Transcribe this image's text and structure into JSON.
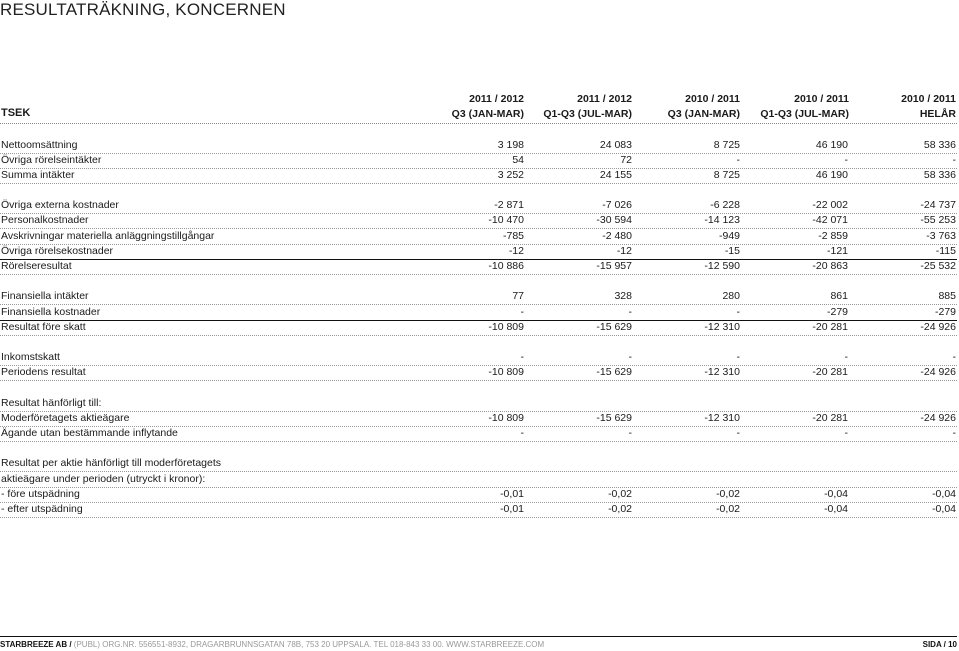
{
  "title": "RESULTATRÄKNING, KONCERNEN",
  "header": {
    "label": "TSEK",
    "columns": [
      {
        "line1": "2011 / 2012",
        "line2": "Q3 (JAN-MAR)"
      },
      {
        "line1": "2011 / 2012",
        "line2": "Q1-Q3 (JUL-MAR)"
      },
      {
        "line1": "2010 / 2011",
        "line2": "Q3 (JAN-MAR)"
      },
      {
        "line1": "2010 / 2011",
        "line2": "Q1-Q3 (JUL-MAR)"
      },
      {
        "line1": "2010 / 2011",
        "line2": "HELÅR"
      }
    ]
  },
  "rows": [
    {
      "label": "Nettoomsättning",
      "values": [
        "3 198",
        "24 083",
        "8 725",
        "46 190",
        "58 336"
      ]
    },
    {
      "label": "Övriga rörelseintäkter",
      "values": [
        "54",
        "72",
        "-",
        "-",
        "-"
      ]
    },
    {
      "label": "Summa intäkter",
      "values": [
        "3 252",
        "24 155",
        "8 725",
        "46 190",
        "58 336"
      ]
    },
    {
      "label": "Övriga externa kostnader",
      "values": [
        "-2 871",
        "-7 026",
        "-6 228",
        "-22 002",
        "-24 737"
      ]
    },
    {
      "label": "Personalkostnader",
      "values": [
        "-10 470",
        "-30 594",
        "-14 123",
        "-42 071",
        "-55 253"
      ]
    },
    {
      "label": "Avskrivningar materiella anläggningstillgångar",
      "values": [
        "-785",
        "-2 480",
        "-949",
        "-2 859",
        "-3 763"
      ]
    },
    {
      "label": "Övriga rörelsekostnader",
      "values": [
        "-12",
        "-12",
        "-15",
        "-121",
        "-115"
      ]
    },
    {
      "label": "Rörelseresultat",
      "values": [
        "-10 886",
        "-15 957",
        "-12 590",
        "-20 863",
        "-25 532"
      ]
    },
    {
      "label": "Finansiella intäkter",
      "values": [
        "77",
        "328",
        "280",
        "861",
        "885"
      ]
    },
    {
      "label": "Finansiella kostnader",
      "values": [
        "-",
        "-",
        "-",
        "-279",
        "-279"
      ]
    },
    {
      "label": "Resultat före skatt",
      "values": [
        "-10 809",
        "-15 629",
        "-12 310",
        "-20 281",
        "-24 926"
      ]
    },
    {
      "label": "Inkomstskatt",
      "values": [
        "-",
        "-",
        "-",
        "-",
        "-"
      ]
    },
    {
      "label": "Periodens resultat",
      "values": [
        "-10 809",
        "-15 629",
        "-12 310",
        "-20 281",
        "-24 926"
      ]
    },
    {
      "label": "Resultat hänförligt till:",
      "values": [
        "",
        "",
        "",
        "",
        ""
      ]
    },
    {
      "label": "Moderföretagets aktieägare",
      "values": [
        "-10 809",
        "-15 629",
        "-12 310",
        "-20 281",
        "-24 926"
      ]
    },
    {
      "label": "Ägande utan bestämmande inflytande",
      "values": [
        "-",
        "-",
        "-",
        "-",
        "-"
      ]
    },
    {
      "label": "Resultat per aktie hänförligt till moderföretagets",
      "values": [
        "",
        "",
        "",
        "",
        ""
      ]
    },
    {
      "label": "aktieägare under perioden (utryckt i kronor):",
      "values": [
        "",
        "",
        "",
        "",
        ""
      ]
    },
    {
      "label": " - före utspädning",
      "values": [
        "-0,01",
        "-0,02",
        "-0,02",
        "-0,04",
        "-0,04"
      ]
    },
    {
      "label": " - efter utspädning",
      "values": [
        "-0,01",
        "-0,02",
        "-0,02",
        "-0,04",
        "-0,04"
      ]
    }
  ],
  "footer": {
    "company": "STARBREEZE AB /",
    "details": "(PUBL) ORG.NR. 556551-8932, DRAGARBRUNNSGATAN 78B, 753 20 UPPSALA. TEL 018-843 33 00. WWW.STARBREEZE.COM",
    "page": "SIDA / 10"
  }
}
